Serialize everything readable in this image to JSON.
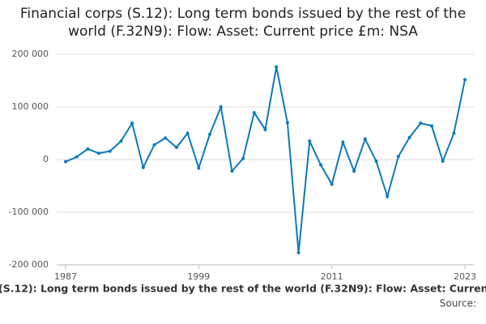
{
  "chart_data": {
    "type": "line",
    "title": "Financial corps (S.12): Long term bonds issued by the rest of the world (F.32N9): Flow: Asset: Current price £m: NSA",
    "source_label": "Source:",
    "x": [
      1987,
      1988,
      1989,
      1990,
      1991,
      1992,
      1993,
      1994,
      1995,
      1996,
      1997,
      1998,
      1999,
      2000,
      2001,
      2002,
      2003,
      2004,
      2005,
      2006,
      2007,
      2008,
      2009,
      2010,
      2011,
      2012,
      2013,
      2014,
      2015,
      2016,
      2017,
      2018,
      2019,
      2020,
      2021,
      2022,
      2023
    ],
    "series": [
      {
        "color": "#0a7bb8",
        "values": [
          -4000,
          5000,
          20000,
          12000,
          16000,
          35000,
          69000,
          -15000,
          28000,
          41000,
          23000,
          50000,
          -16000,
          48000,
          100000,
          -22000,
          2000,
          89000,
          57000,
          176000,
          70000,
          -177000,
          35000,
          -10000,
          -47000,
          33000,
          -22000,
          39000,
          -3000,
          -70000,
          6000,
          42000,
          69000,
          64000,
          -3000,
          50000,
          152000
        ]
      }
    ],
    "xlim": [
      1986.2,
      2023.8
    ],
    "xticks": [
      1987,
      1999,
      2011,
      2023
    ],
    "ylim": [
      -200000,
      200000
    ],
    "yticks": [
      {
        "value": -200000,
        "label": "-200 000"
      },
      {
        "value": -100000,
        "label": "-100 000"
      },
      0,
      {
        "value": 100000,
        "label": "100 000"
      },
      {
        "value": 200000,
        "label": "200 000"
      }
    ],
    "grid": true
  }
}
